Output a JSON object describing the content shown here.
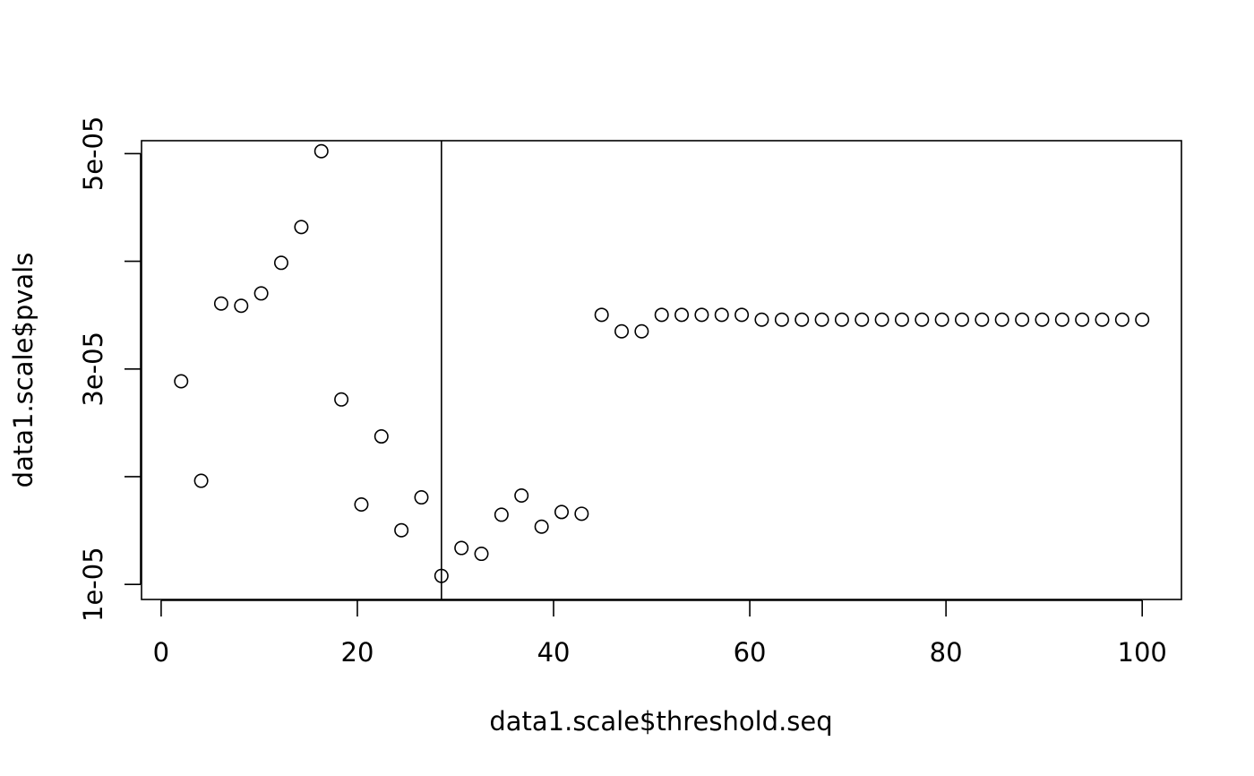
{
  "chart_data": {
    "type": "scatter",
    "title": "",
    "xlabel": "data1.scale$threshold.seq",
    "ylabel": "data1.scale$pvals",
    "xlim": [
      -2,
      104
    ],
    "ylim": [
      8.6e-06,
      5.12e-05
    ],
    "x_ticks": [
      0,
      20,
      40,
      60,
      80,
      100
    ],
    "x_tick_labels": [
      "0",
      "20",
      "40",
      "60",
      "80",
      "100"
    ],
    "y_ticks": [
      1e-05,
      2e-05,
      3e-05,
      4e-05,
      5e-05
    ],
    "y_tick_labels": [
      "1e-05",
      "",
      "3e-05",
      "",
      "5e-05"
    ],
    "grid": false,
    "marker": "open-circle",
    "vline_x": 28.57,
    "x": [
      2.04,
      4.08,
      6.12,
      8.16,
      10.2,
      12.24,
      14.29,
      16.33,
      18.37,
      20.41,
      22.45,
      24.49,
      26.53,
      28.57,
      30.61,
      32.65,
      34.69,
      36.73,
      38.78,
      40.82,
      42.86,
      44.9,
      46.94,
      48.98,
      51.02,
      53.06,
      55.1,
      57.14,
      59.18,
      61.22,
      63.27,
      65.31,
      67.35,
      69.39,
      71.43,
      73.47,
      75.51,
      77.55,
      79.59,
      81.63,
      83.67,
      85.71,
      87.76,
      89.8,
      91.84,
      93.88,
      95.92,
      97.96,
      100.0
    ],
    "y": [
      2.886e-05,
      1.962e-05,
      3.608e-05,
      3.587e-05,
      3.702e-05,
      3.986e-05,
      4.318e-05,
      5.022e-05,
      2.717e-05,
      1.742e-05,
      2.374e-05,
      1.503e-05,
      1.808e-05,
      1.079e-05,
      1.338e-05,
      1.284e-05,
      1.647e-05,
      1.825e-05,
      1.536e-05,
      1.672e-05,
      1.656e-05,
      3.503e-05,
      3.35e-05,
      3.35e-05,
      3.503e-05,
      3.503e-05,
      3.503e-05,
      3.503e-05,
      3.503e-05,
      3.458e-05,
      3.458e-05,
      3.458e-05,
      3.458e-05,
      3.458e-05,
      3.458e-05,
      3.458e-05,
      3.458e-05,
      3.458e-05,
      3.458e-05,
      3.458e-05,
      3.458e-05,
      3.458e-05,
      3.458e-05,
      3.458e-05,
      3.458e-05,
      3.458e-05,
      3.458e-05,
      3.458e-05,
      3.458e-05
    ]
  }
}
